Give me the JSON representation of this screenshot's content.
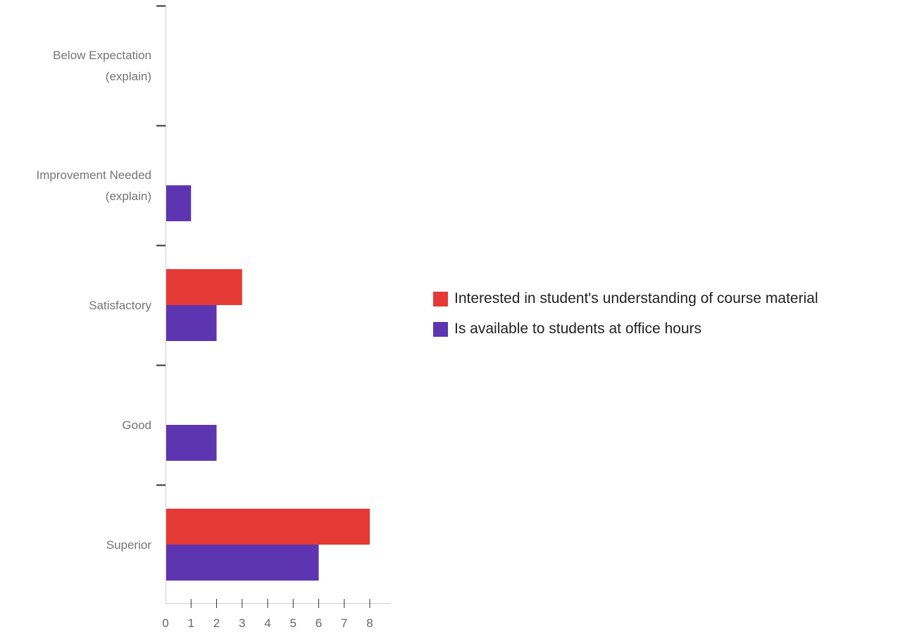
{
  "chart_data": {
    "type": "bar",
    "orientation": "horizontal",
    "categories": [
      [
        "Below Expectation",
        "(explain)"
      ],
      [
        "Improvement Needed",
        "(explain)"
      ],
      [
        "Satisfactory"
      ],
      [
        "Good"
      ],
      [
        "Superior"
      ]
    ],
    "series": [
      {
        "name": "Interested in student's understanding of course material",
        "color": "#e53935",
        "values": [
          0,
          0,
          3,
          0,
          8
        ]
      },
      {
        "name": "Is available to students at office hours",
        "color": "#5e35b1",
        "values": [
          0,
          1,
          2,
          2,
          6
        ]
      }
    ],
    "x_ticks": [
      0,
      1,
      2,
      3,
      4,
      5,
      6,
      7,
      8
    ],
    "xlim": [
      0,
      8.7
    ],
    "title": "",
    "xlabel": "",
    "ylabel": "",
    "grid": false,
    "legend_position": "right"
  }
}
